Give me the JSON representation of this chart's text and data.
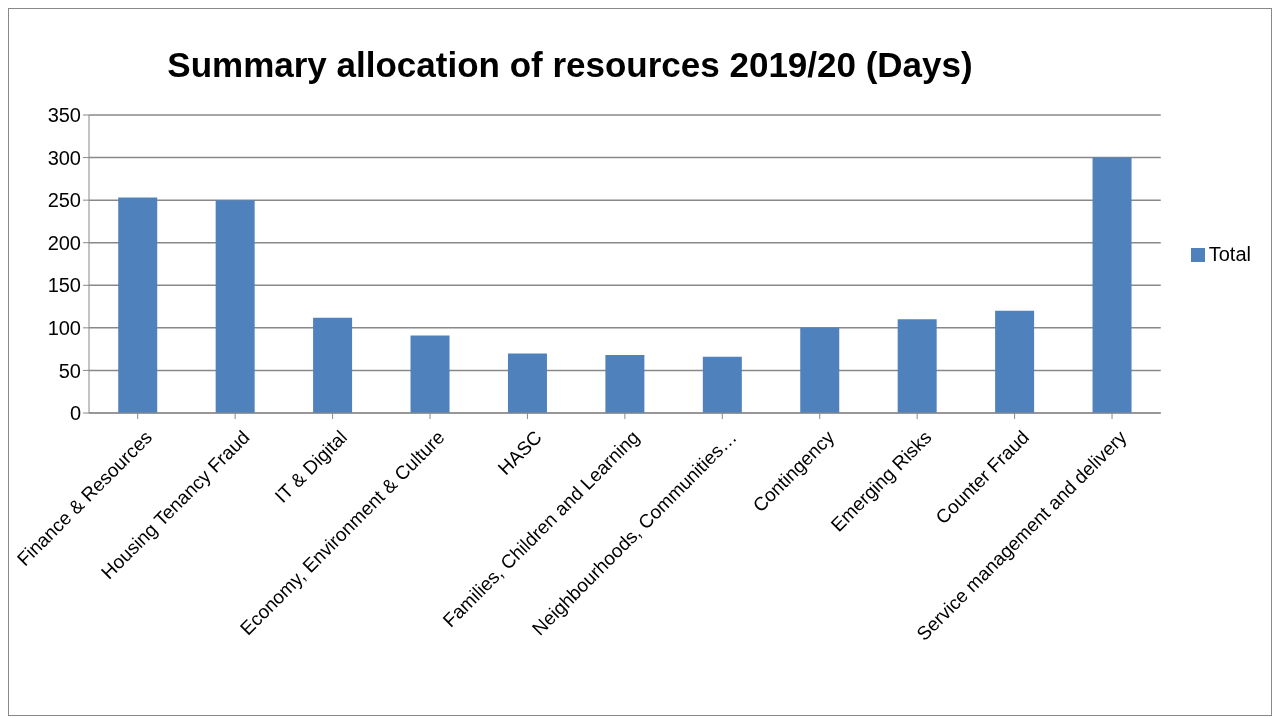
{
  "chart_data": {
    "type": "bar",
    "title": "Summary allocation of resources 2019/20 (Days)",
    "categories": [
      "Finance & Resources",
      "Housing Tenancy Fraud",
      "IT & Digital",
      "Economy, Environment & Culture",
      "HASC",
      "Families, Children and Learning",
      "Neighbourhoods, Communities…",
      "Contingency",
      "Emerging Risks",
      "Counter Fraud",
      "Service management and delivery"
    ],
    "series": [
      {
        "name": "Total",
        "color": "#4f81bd",
        "values": [
          253,
          250,
          112,
          91,
          70,
          68,
          66,
          100,
          110,
          120,
          300
        ]
      }
    ],
    "ylim": [
      0,
      350
    ],
    "yticks": [
      0,
      50,
      100,
      150,
      200,
      250,
      300,
      350
    ],
    "grid": "y",
    "legend": "right"
  }
}
